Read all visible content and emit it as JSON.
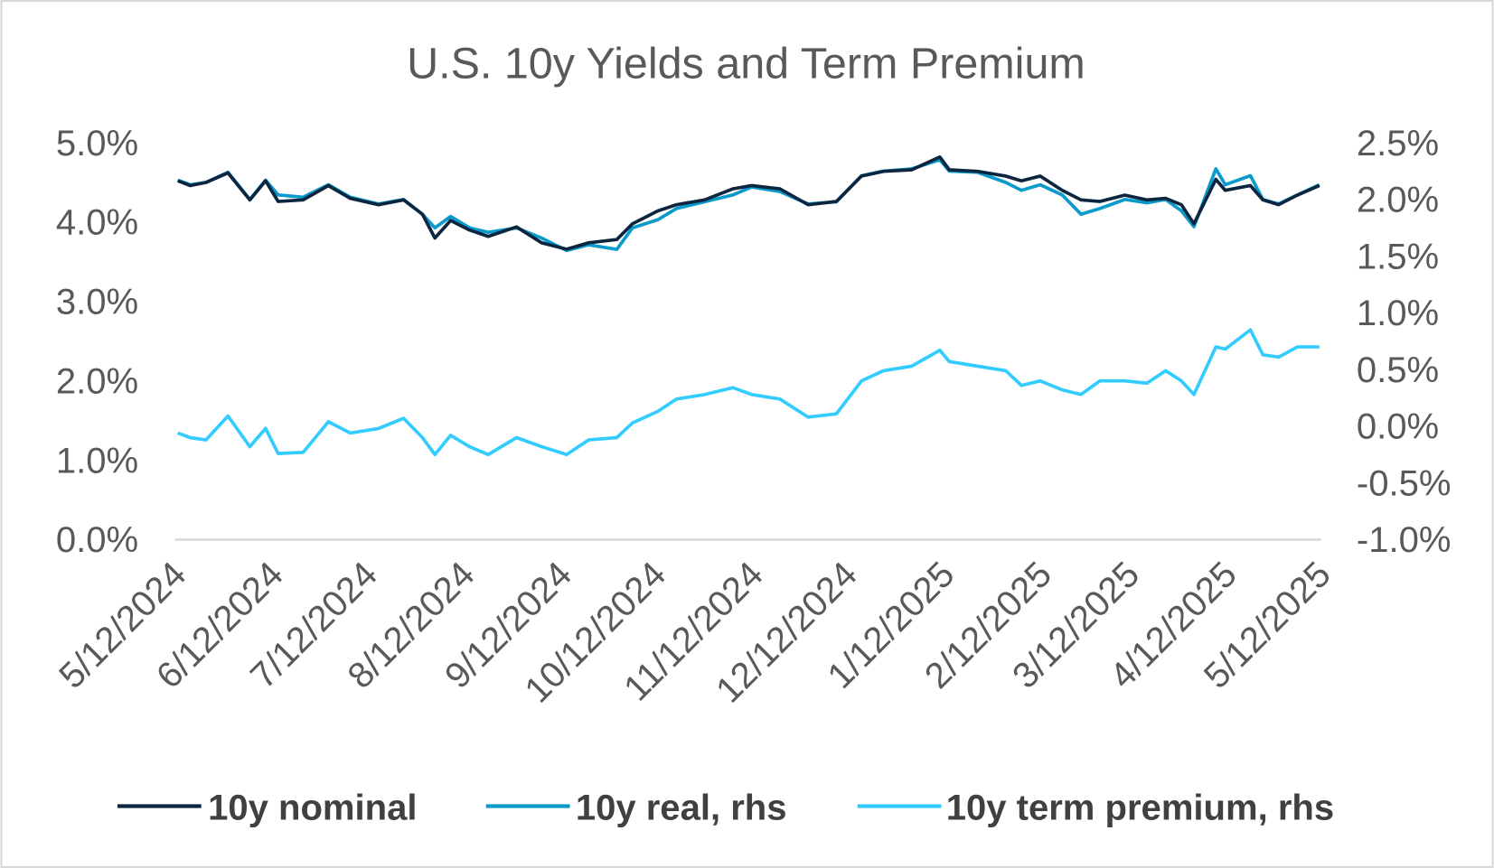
{
  "chart_data": {
    "type": "line",
    "title": "U.S. 10y Yields and Term Premium",
    "xlabel": "",
    "ylabel": "",
    "y_left": {
      "ticks": [
        "0.0%",
        "1.0%",
        "2.0%",
        "3.0%",
        "4.0%",
        "5.0%"
      ],
      "ylim": [
        0,
        5
      ]
    },
    "y_right": {
      "ticks": [
        "-1.0%",
        "-0.5%",
        "0.0%",
        "0.5%",
        "1.0%",
        "1.5%",
        "2.0%",
        "2.5%"
      ],
      "ylim": [
        -1,
        2.5
      ]
    },
    "x_ticks": [
      "5/12/2024",
      "6/12/2024",
      "7/12/2024",
      "8/12/2024",
      "9/12/2024",
      "10/12/2024",
      "11/12/2024",
      "12/12/2024",
      "1/12/2025",
      "2/12/2025",
      "3/12/2025",
      "4/12/2025",
      "5/12/2025"
    ],
    "grid": false,
    "legend_position": "bottom",
    "x": [
      "5/13/2024",
      "5/17/2024",
      "5/22/2024",
      "5/29/2024",
      "6/5/2024",
      "6/10/2024",
      "6/14/2024",
      "6/22/2024",
      "6/30/2024",
      "7/7/2024",
      "7/16/2024",
      "7/24/2024",
      "7/30/2024",
      "8/3/2024",
      "8/8/2024",
      "8/14/2024",
      "8/20/2024",
      "8/29/2024",
      "9/6/2024",
      "9/14/2024",
      "9/21/2024",
      "9/30/2024",
      "10/5/2024",
      "10/13/2024",
      "10/19/2024",
      "10/28/2024",
      "11/6/2024",
      "11/12/2024",
      "11/21/2024",
      "11/30/2024",
      "12/9/2024",
      "12/17/2024",
      "12/24/2024",
      "1/2/2025",
      "1/11/2025",
      "1/14/2025",
      "1/23/2025",
      "2/1/2025",
      "2/6/2025",
      "2/12/2025",
      "2/19/2025",
      "2/25/2025",
      "3/3/2025",
      "3/11/2025",
      "3/18/2025",
      "3/24/2025",
      "3/29/2025",
      "4/2/2025",
      "4/9/2025",
      "4/12/2025",
      "4/20/2025",
      "4/24/2025",
      "4/29/2025",
      "5/5/2025",
      "5/12/2025"
    ],
    "series": [
      {
        "name": "10y nominal",
        "axis": "left",
        "color": "#0d2640",
        "values": [
          4.52,
          4.46,
          4.5,
          4.62,
          4.28,
          4.52,
          4.26,
          4.28,
          4.46,
          4.3,
          4.22,
          4.28,
          4.1,
          3.8,
          4.02,
          3.9,
          3.82,
          3.94,
          3.74,
          3.66,
          3.74,
          3.78,
          3.98,
          4.14,
          4.22,
          4.28,
          4.42,
          4.46,
          4.42,
          4.22,
          4.26,
          4.58,
          4.64,
          4.66,
          4.82,
          4.66,
          4.64,
          4.58,
          4.52,
          4.58,
          4.4,
          4.28,
          4.26,
          4.34,
          4.28,
          4.3,
          4.22,
          3.98,
          4.54,
          4.4,
          4.46,
          4.28,
          4.22,
          4.34,
          4.46
        ]
      },
      {
        "name": "10y real, rhs",
        "axis": "right",
        "color": "#0a9bcc",
        "values": [
          2.17,
          2.13,
          2.15,
          2.24,
          2.0,
          2.17,
          2.04,
          2.02,
          2.13,
          2.02,
          1.96,
          2.0,
          1.87,
          1.75,
          1.85,
          1.75,
          1.71,
          1.75,
          1.66,
          1.55,
          1.6,
          1.56,
          1.75,
          1.82,
          1.92,
          1.98,
          2.04,
          2.11,
          2.07,
          1.96,
          1.98,
          2.21,
          2.25,
          2.27,
          2.35,
          2.25,
          2.24,
          2.15,
          2.08,
          2.13,
          2.04,
          1.87,
          1.92,
          2.0,
          1.97,
          2.0,
          1.9,
          1.76,
          2.27,
          2.13,
          2.21,
          2.0,
          1.96,
          2.04,
          2.13
        ]
      },
      {
        "name": "10y term premium, rhs",
        "axis": "right",
        "color": "#33ccff",
        "values": [
          -0.06,
          -0.1,
          -0.12,
          0.09,
          -0.18,
          -0.02,
          -0.24,
          -0.23,
          0.04,
          -0.06,
          -0.02,
          0.07,
          -0.1,
          -0.25,
          -0.08,
          -0.18,
          -0.25,
          -0.1,
          -0.18,
          -0.25,
          -0.12,
          -0.1,
          0.03,
          0.13,
          0.24,
          0.28,
          0.34,
          0.28,
          0.24,
          0.08,
          0.11,
          0.4,
          0.49,
          0.53,
          0.67,
          0.57,
          0.53,
          0.49,
          0.36,
          0.4,
          0.32,
          0.28,
          0.4,
          0.4,
          0.38,
          0.49,
          0.4,
          0.28,
          0.7,
          0.68,
          0.85,
          0.63,
          0.61,
          0.7,
          0.7
        ]
      }
    ]
  }
}
